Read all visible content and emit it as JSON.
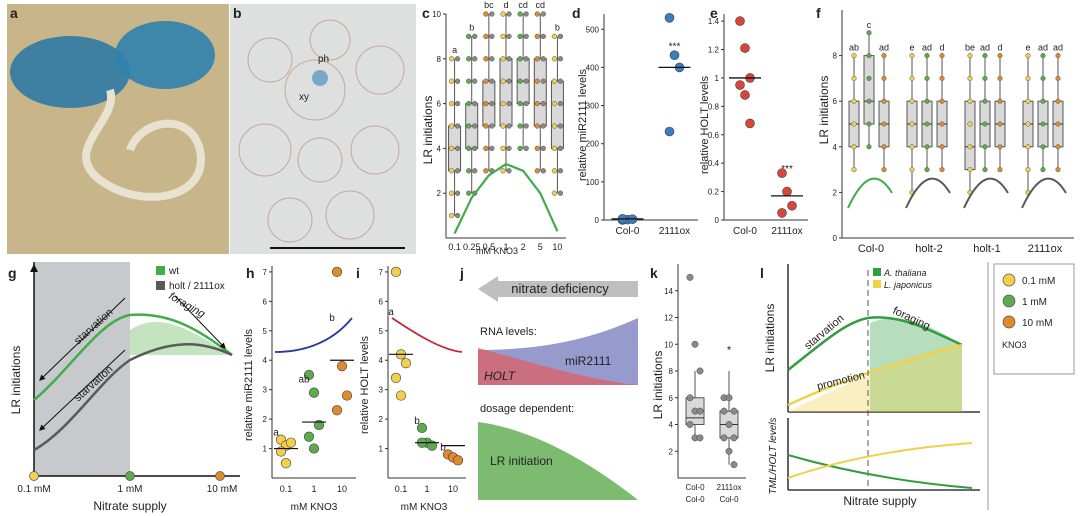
{
  "panels": {
    "a": {
      "letter": "a"
    },
    "b": {
      "letter": "b",
      "label_ph": "ph",
      "label_xy": "xy"
    },
    "c": {
      "letter": "c"
    },
    "d": {
      "letter": "d"
    },
    "e": {
      "letter": "e"
    },
    "f": {
      "letter": "f"
    },
    "g": {
      "letter": "g"
    },
    "h": {
      "letter": "h"
    },
    "i": {
      "letter": "i"
    },
    "j": {
      "letter": "j"
    },
    "k": {
      "letter": "k"
    },
    "l": {
      "letter": "l"
    }
  },
  "chart_data": [
    {
      "panel": "c",
      "type": "box",
      "ylabel": "LR initiations",
      "xlabel": "mM KNO3",
      "categories": [
        "0.1",
        "0.25",
        "0.5",
        "1",
        "2",
        "5",
        "10"
      ],
      "letters": [
        "a",
        "b",
        "bc",
        "d",
        "cd",
        "cd",
        "b"
      ],
      "ylim": [
        0,
        10
      ],
      "yticks": [
        2,
        4,
        6,
        8,
        10
      ],
      "boxes": [
        [
          1,
          3,
          4,
          5,
          8
        ],
        [
          2,
          4,
          5,
          6,
          9
        ],
        [
          3,
          5,
          6,
          7,
          10
        ],
        [
          3,
          5,
          7,
          8,
          10
        ],
        [
          4,
          6,
          7,
          8,
          10
        ],
        [
          3,
          5,
          6,
          8,
          10
        ],
        [
          2,
          4,
          5,
          7,
          9
        ]
      ],
      "trend": [
        0.2,
        1.8,
        2.8,
        3.3,
        3.0,
        2.0,
        0.3
      ]
    },
    {
      "panel": "d",
      "type": "scatter",
      "ylabel": "relative miR2111 levels",
      "categories": [
        "Col-0",
        "2111ox"
      ],
      "ylim": [
        0,
        540
      ],
      "yticks": [
        0,
        100,
        200,
        300,
        400,
        500
      ],
      "points": [
        [
          0,
          1,
          2,
          3
        ],
        [
          530,
          432,
          400,
          232
        ]
      ],
      "means": [
        3,
        400
      ],
      "annotation": "***"
    },
    {
      "panel": "e",
      "type": "scatter",
      "ylabel": "relative HOLT levels",
      "categories": [
        "Col-0",
        "2111ox"
      ],
      "ylim": [
        0,
        1.45
      ],
      "yticks": [
        0,
        0.2,
        0.4,
        0.6,
        0.8,
        1.0,
        1.2,
        1.4
      ],
      "points": [
        [
          1.4,
          1.21,
          1.0,
          0.95,
          0.88,
          0.68
        ],
        [
          0.33,
          0.2,
          0.1,
          0.05
        ]
      ],
      "means": [
        1.0,
        0.17
      ],
      "annotation": "***"
    },
    {
      "panel": "f",
      "type": "box",
      "ylabel": "LR initiations",
      "groups": [
        "Col-0",
        "holt-2",
        "holt-1",
        "2111ox"
      ],
      "group_letters": [
        [
          "ab",
          "c",
          "ad"
        ],
        [
          "e",
          "ad",
          "d"
        ],
        [
          "be",
          "ad",
          "d"
        ],
        [
          "e",
          "ad",
          "ad"
        ]
      ],
      "ylim": [
        0,
        10
      ],
      "yticks": [
        0,
        2,
        4,
        6,
        8
      ],
      "boxes": [
        [
          [
            3,
            4,
            5,
            6,
            8
          ],
          [
            4,
            5,
            6,
            8,
            9
          ],
          [
            3,
            4,
            5,
            6,
            8
          ]
        ],
        [
          [
            2,
            4,
            5,
            6,
            8
          ],
          [
            3,
            4,
            5,
            6,
            8
          ],
          [
            3,
            4,
            5,
            6,
            8
          ]
        ],
        [
          [
            2,
            3,
            4,
            6,
            8
          ],
          [
            3,
            4,
            5,
            6,
            8
          ],
          [
            3,
            4,
            5,
            6,
            8
          ]
        ],
        [
          [
            2,
            4,
            5,
            6,
            8
          ],
          [
            3,
            4,
            5,
            6,
            8
          ],
          [
            3,
            4,
            5,
            6,
            8
          ]
        ]
      ]
    },
    {
      "panel": "g",
      "type": "line",
      "ylabel": "LR initiations",
      "xlabel": "Nitrate supply",
      "xticks": [
        "0.1 mM",
        "1 mM",
        "10 mM"
      ],
      "series": [
        {
          "name": "wt",
          "color": "#3fae49"
        },
        {
          "name": "holt / 2111ox",
          "color": "#5a5a5a"
        }
      ],
      "annotations": [
        "starvation",
        "foraging",
        "starvation"
      ]
    },
    {
      "panel": "h",
      "type": "scatter",
      "ylabel": "relative miR2111 levels",
      "xlabel": "mM KNO3",
      "categories": [
        "0.1",
        "1",
        "10"
      ],
      "letters": [
        "a",
        "ab",
        "b"
      ],
      "ylim": [
        0,
        7.2
      ],
      "yticks": [
        1,
        2,
        3,
        4,
        5,
        6,
        7
      ],
      "points": [
        [
          1.3,
          1.1,
          1.2,
          0.9,
          0.5
        ],
        [
          3.5,
          2.9,
          1.8,
          1.4,
          1.0
        ],
        [
          7.0,
          3.8,
          2.8,
          2.3
        ]
      ],
      "means": [
        1.0,
        1.9,
        4.0
      ]
    },
    {
      "panel": "i",
      "type": "scatter",
      "ylabel": "relative HOLT levels",
      "xlabel": "mM KNO3",
      "categories": [
        "0.1",
        "1",
        "10"
      ],
      "letters": [
        "a",
        "b",
        "b"
      ],
      "ylim": [
        0,
        7.2
      ],
      "yticks": [
        1,
        2,
        3,
        4,
        5,
        6,
        7
      ],
      "points": [
        [
          7.0,
          4.2,
          3.9,
          3.4,
          2.8
        ],
        [
          1.7,
          1.2,
          1.1,
          1.2
        ],
        [
          0.8,
          0.7,
          0.6
        ]
      ],
      "means": [
        4.2,
        1.2,
        1.1
      ]
    },
    {
      "panel": "k",
      "type": "box",
      "ylabel": "LR initiations",
      "categories": [
        "Col-0 / Col-0",
        "2111ox / Col-0"
      ],
      "annotation": "*",
      "ylim": [
        0,
        16
      ],
      "yticks": [
        2,
        4,
        6,
        8,
        10,
        12,
        14
      ],
      "points": [
        [
          15,
          10,
          8,
          6,
          5,
          5,
          4,
          3,
          3
        ],
        [
          6,
          6,
          5,
          5,
          4,
          3,
          3,
          2,
          1
        ]
      ],
      "boxes": [
        [
          3,
          4,
          4.5,
          6,
          8
        ],
        [
          1,
          3,
          4,
          5,
          8
        ]
      ]
    }
  ],
  "diagram_j": {
    "banner": "nitrate deficiency",
    "rna_title": "RNA levels:",
    "mir": "miR2111",
    "holt": "HOLT",
    "dose": "dosage dependent:",
    "lr": "LR initiation"
  },
  "diagram_l": {
    "ylabel": "LR initiations",
    "ylabel2": "TML/HOLT levels",
    "xlabel": "Nitrate supply",
    "legend": [
      "A. thaliana",
      "L. japonicus"
    ],
    "legend_colors": [
      "#2e9e3e",
      "#f2d04a"
    ],
    "labels": [
      "starvation",
      "foraging",
      "promotion"
    ]
  },
  "legend_right": {
    "items": [
      "0.1 mM",
      "1 mM",
      "10 mM"
    ],
    "colors": [
      "#f2d04a",
      "#5cab4c",
      "#e08a2e"
    ],
    "caption": "KNO3"
  }
}
